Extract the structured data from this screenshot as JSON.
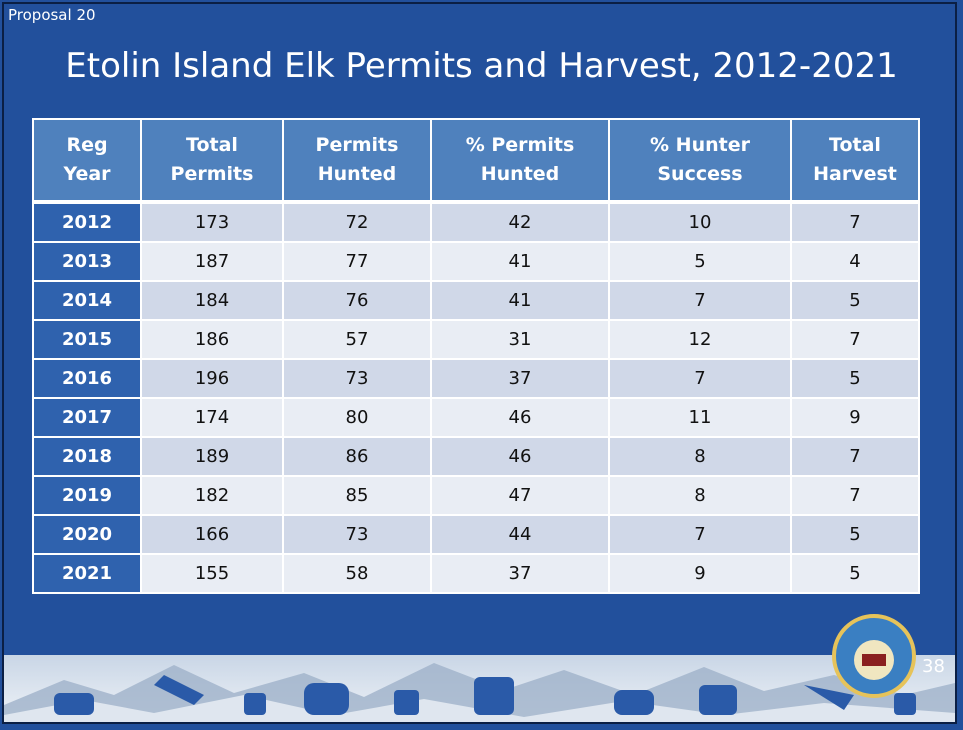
{
  "header": {
    "proposal": "Proposal 20",
    "title": "Etolin Island Elk Permits and Harvest, 2012-2021"
  },
  "table": {
    "columns": [
      [
        "Reg",
        "Year"
      ],
      [
        "Total",
        "Permits"
      ],
      [
        "Permits",
        "Hunted"
      ],
      [
        "% Permits",
        "Hunted"
      ],
      [
        "% Hunter",
        "Success"
      ],
      [
        "Total",
        "Harvest"
      ]
    ],
    "rows": [
      [
        2012,
        173,
        72,
        42,
        10,
        7
      ],
      [
        2013,
        187,
        77,
        41,
        5,
        4
      ],
      [
        2014,
        184,
        76,
        41,
        7,
        5
      ],
      [
        2015,
        186,
        57,
        31,
        12,
        7
      ],
      [
        2016,
        196,
        73,
        37,
        7,
        5
      ],
      [
        2017,
        174,
        80,
        46,
        11,
        9
      ],
      [
        2018,
        189,
        86,
        46,
        8,
        7
      ],
      [
        2019,
        182,
        85,
        47,
        8,
        7
      ],
      [
        2020,
        166,
        73,
        44,
        7,
        5
      ],
      [
        2021,
        155,
        58,
        37,
        9,
        5
      ]
    ]
  },
  "footer": {
    "page": 38
  }
}
